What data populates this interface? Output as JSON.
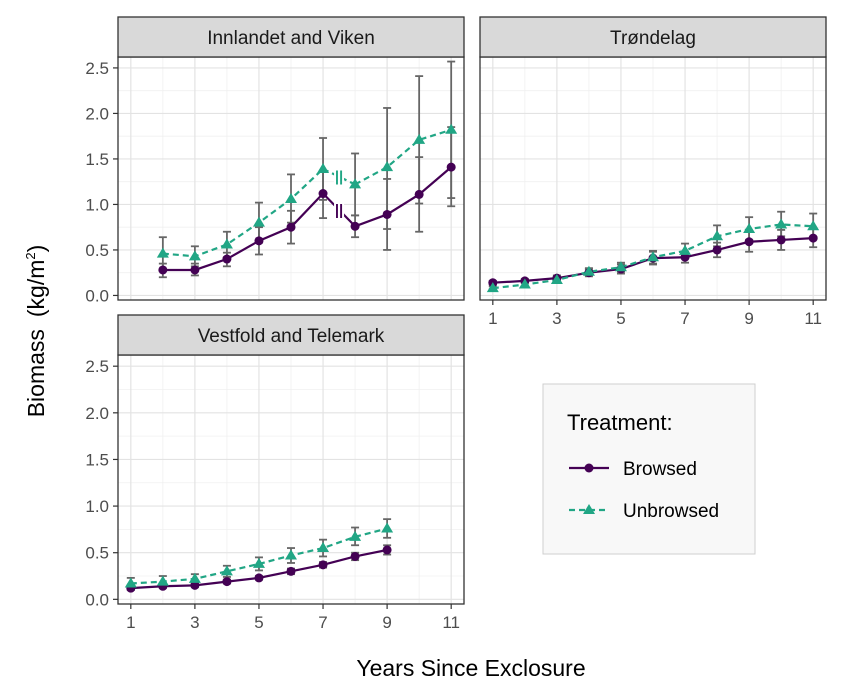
{
  "chart_data": {
    "type": "line",
    "xlabel": "Years Since Exclosure",
    "ylabel": "Biomass",
    "ylabel_unit": "(kg/m",
    "ylabel_unit_sup": "2",
    "ylabel_unit_close": ")",
    "xlim": [
      0.6,
      11.4
    ],
    "ylim": [
      -0.05,
      2.62
    ],
    "x_ticks": [
      "1",
      "3",
      "5",
      "7",
      "9",
      "11"
    ],
    "y_ticks": [
      "0.0",
      "0.5",
      "1.0",
      "1.5",
      "2.0",
      "2.5"
    ],
    "grid": true,
    "legend": {
      "title": "Treatment:",
      "position": "bottom-right",
      "entries": [
        {
          "label": "Browsed",
          "color": "#440154",
          "marker": "circle",
          "line": "solid"
        },
        {
          "label": "Unbrowsed",
          "color": "#21a685",
          "marker": "triangle",
          "line": "dashed"
        }
      ]
    },
    "panels": [
      {
        "title": "Innlandet and Viken",
        "breakpoint_mark": "||",
        "series": [
          {
            "name": "Browsed",
            "x": [
              2,
              3,
              4,
              5,
              6,
              7,
              8,
              9,
              10,
              11
            ],
            "y": [
              0.28,
              0.28,
              0.4,
              0.6,
              0.75,
              1.12,
              0.76,
              0.89,
              1.11,
              1.41
            ],
            "err_low": [
              0.2,
              0.22,
              0.32,
              0.45,
              0.57,
              0.85,
              0.64,
              0.5,
              0.7,
              0.98
            ],
            "err_high": [
              0.35,
              0.35,
              0.47,
              0.75,
              0.93,
              1.37,
              0.88,
              1.28,
              1.52,
              1.85
            ]
          },
          {
            "name": "Unbrowsed",
            "x": [
              2,
              3,
              4,
              5,
              6,
              7,
              8,
              9,
              10,
              11
            ],
            "y": [
              0.46,
              0.43,
              0.56,
              0.8,
              1.06,
              1.39,
              1.22,
              1.41,
              1.71,
              1.82
            ],
            "err_low": [
              0.28,
              0.32,
              0.42,
              0.58,
              0.8,
              1.05,
              0.88,
              0.73,
              1.01,
              1.07
            ],
            "err_high": [
              0.64,
              0.54,
              0.7,
              1.02,
              1.33,
              1.73,
              1.56,
              2.06,
              2.41,
              2.57
            ]
          }
        ]
      },
      {
        "title": "Trøndelag",
        "series": [
          {
            "name": "Browsed",
            "x": [
              1,
              2,
              3,
              4,
              5,
              6,
              7,
              8,
              9,
              10,
              11
            ],
            "y": [
              0.14,
              0.16,
              0.19,
              0.25,
              0.29,
              0.41,
              0.42,
              0.5,
              0.59,
              0.61,
              0.63
            ],
            "err_low": [
              0.12,
              0.14,
              0.16,
              0.21,
              0.24,
              0.34,
              0.36,
              0.42,
              0.48,
              0.5,
              0.53
            ],
            "err_high": [
              0.16,
              0.18,
              0.22,
              0.29,
              0.34,
              0.48,
              0.48,
              0.58,
              0.7,
              0.72,
              0.74
            ]
          },
          {
            "name": "Unbrowsed",
            "x": [
              1,
              2,
              3,
              4,
              5,
              6,
              7,
              8,
              9,
              10,
              11
            ],
            "y": [
              0.08,
              0.12,
              0.17,
              0.26,
              0.31,
              0.42,
              0.49,
              0.65,
              0.73,
              0.78,
              0.76
            ],
            "err_low": [
              0.07,
              0.1,
              0.14,
              0.22,
              0.26,
              0.35,
              0.41,
              0.54,
              0.61,
              0.65,
              0.62
            ],
            "err_high": [
              0.1,
              0.14,
              0.2,
              0.3,
              0.36,
              0.49,
              0.57,
              0.77,
              0.86,
              0.92,
              0.9
            ]
          }
        ]
      },
      {
        "title": "Vestfold and Telemark",
        "series": [
          {
            "name": "Browsed",
            "x": [
              1,
              2,
              3,
              4,
              5,
              6,
              7,
              8,
              9
            ],
            "y": [
              0.12,
              0.14,
              0.15,
              0.19,
              0.23,
              0.3,
              0.37,
              0.46,
              0.53
            ],
            "err_low": [
              0.1,
              0.12,
              0.13,
              0.17,
              0.21,
              0.27,
              0.34,
              0.42,
              0.48
            ],
            "err_high": [
              0.14,
              0.16,
              0.17,
              0.21,
              0.25,
              0.33,
              0.4,
              0.5,
              0.58
            ]
          },
          {
            "name": "Unbrowsed",
            "x": [
              1,
              2,
              3,
              4,
              5,
              6,
              7,
              8,
              9
            ],
            "y": [
              0.17,
              0.19,
              0.22,
              0.3,
              0.38,
              0.47,
              0.55,
              0.67,
              0.76
            ],
            "err_low": [
              0.12,
              0.13,
              0.17,
              0.24,
              0.31,
              0.39,
              0.46,
              0.58,
              0.66
            ],
            "err_high": [
              0.23,
              0.25,
              0.27,
              0.36,
              0.45,
              0.55,
              0.64,
              0.77,
              0.86
            ]
          }
        ]
      }
    ]
  }
}
